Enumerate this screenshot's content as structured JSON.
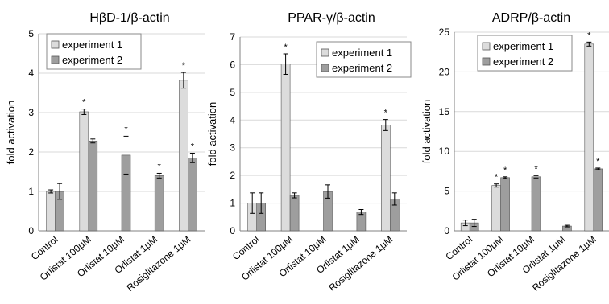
{
  "colors": {
    "experiment1": "#dcdcdc",
    "experiment2": "#9e9e9e",
    "grid": "#d9d9d9",
    "axis": "#808080"
  },
  "chart_data": [
    {
      "type": "bar",
      "title": "HβD-1/β-actin",
      "ylabel": "fold activation",
      "xlabel": "",
      "ylim": [
        0,
        5
      ],
      "yticks": [
        "0",
        "1",
        "2",
        "3",
        "4",
        "5"
      ],
      "grid": true,
      "legend_position": "top-left",
      "categories": [
        "Control",
        "Orlistat 100μM",
        "Orlistat 10μM",
        "Orlistat 1μM",
        "Rosiglitazone 1μM"
      ],
      "series": [
        {
          "name": "experiment 1",
          "values": [
            1.0,
            3.02,
            null,
            null,
            3.82
          ],
          "errors": [
            0.04,
            0.07,
            null,
            null,
            0.2
          ],
          "significant": [
            false,
            true,
            false,
            false,
            true
          ]
        },
        {
          "name": "experiment 2",
          "values": [
            1.0,
            2.28,
            1.92,
            1.4,
            1.85
          ],
          "errors": [
            0.2,
            0.05,
            0.48,
            0.06,
            0.12
          ],
          "significant": [
            false,
            false,
            true,
            true,
            true
          ]
        }
      ]
    },
    {
      "type": "bar",
      "title": "PPAR-γ/β-actin",
      "ylabel": "fold activation",
      "xlabel": "",
      "ylim": [
        0,
        7
      ],
      "yticks": [
        "0",
        "1",
        "2",
        "3",
        "4",
        "5",
        "6",
        "7"
      ],
      "grid": true,
      "legend_position": "top-right",
      "categories": [
        "Control",
        "Orlistat 100μM",
        "Orlistat 10μM",
        "Orlistat 1μM",
        "Rosiglitazone 1μM"
      ],
      "series": [
        {
          "name": "experiment 1",
          "values": [
            1.0,
            6.02,
            null,
            null,
            3.82
          ],
          "errors": [
            0.37,
            0.37,
            null,
            null,
            0.2
          ],
          "significant": [
            false,
            true,
            false,
            false,
            true
          ]
        },
        {
          "name": "experiment 2",
          "values": [
            1.0,
            1.28,
            1.42,
            0.68,
            1.15
          ],
          "errors": [
            0.37,
            0.09,
            0.24,
            0.09,
            0.22
          ],
          "significant": [
            false,
            false,
            false,
            false,
            false
          ]
        }
      ]
    },
    {
      "type": "bar",
      "title": "ADRP/β-actin",
      "ylabel": "fold activation",
      "xlabel": "",
      "ylim": [
        0,
        25
      ],
      "yticks": [
        "0",
        "5",
        "10",
        "15",
        "20",
        "25"
      ],
      "grid": true,
      "legend_position": "top-left",
      "categories": [
        "Control",
        "Orlistat 100μM",
        "Orlistat 10μM",
        "Orlistat 1μM",
        "Rosiglitazone 1μM"
      ],
      "series": [
        {
          "name": "experiment 1",
          "values": [
            1.0,
            5.7,
            null,
            null,
            23.5
          ],
          "errors": [
            0.35,
            0.2,
            null,
            null,
            0.25
          ],
          "significant": [
            false,
            true,
            false,
            false,
            true
          ]
        },
        {
          "name": "experiment 2",
          "values": [
            1.0,
            6.7,
            6.8,
            0.6,
            7.8
          ],
          "errors": [
            0.45,
            0.1,
            0.15,
            0.1,
            0.1
          ],
          "significant": [
            false,
            true,
            true,
            false,
            true
          ]
        }
      ]
    }
  ]
}
